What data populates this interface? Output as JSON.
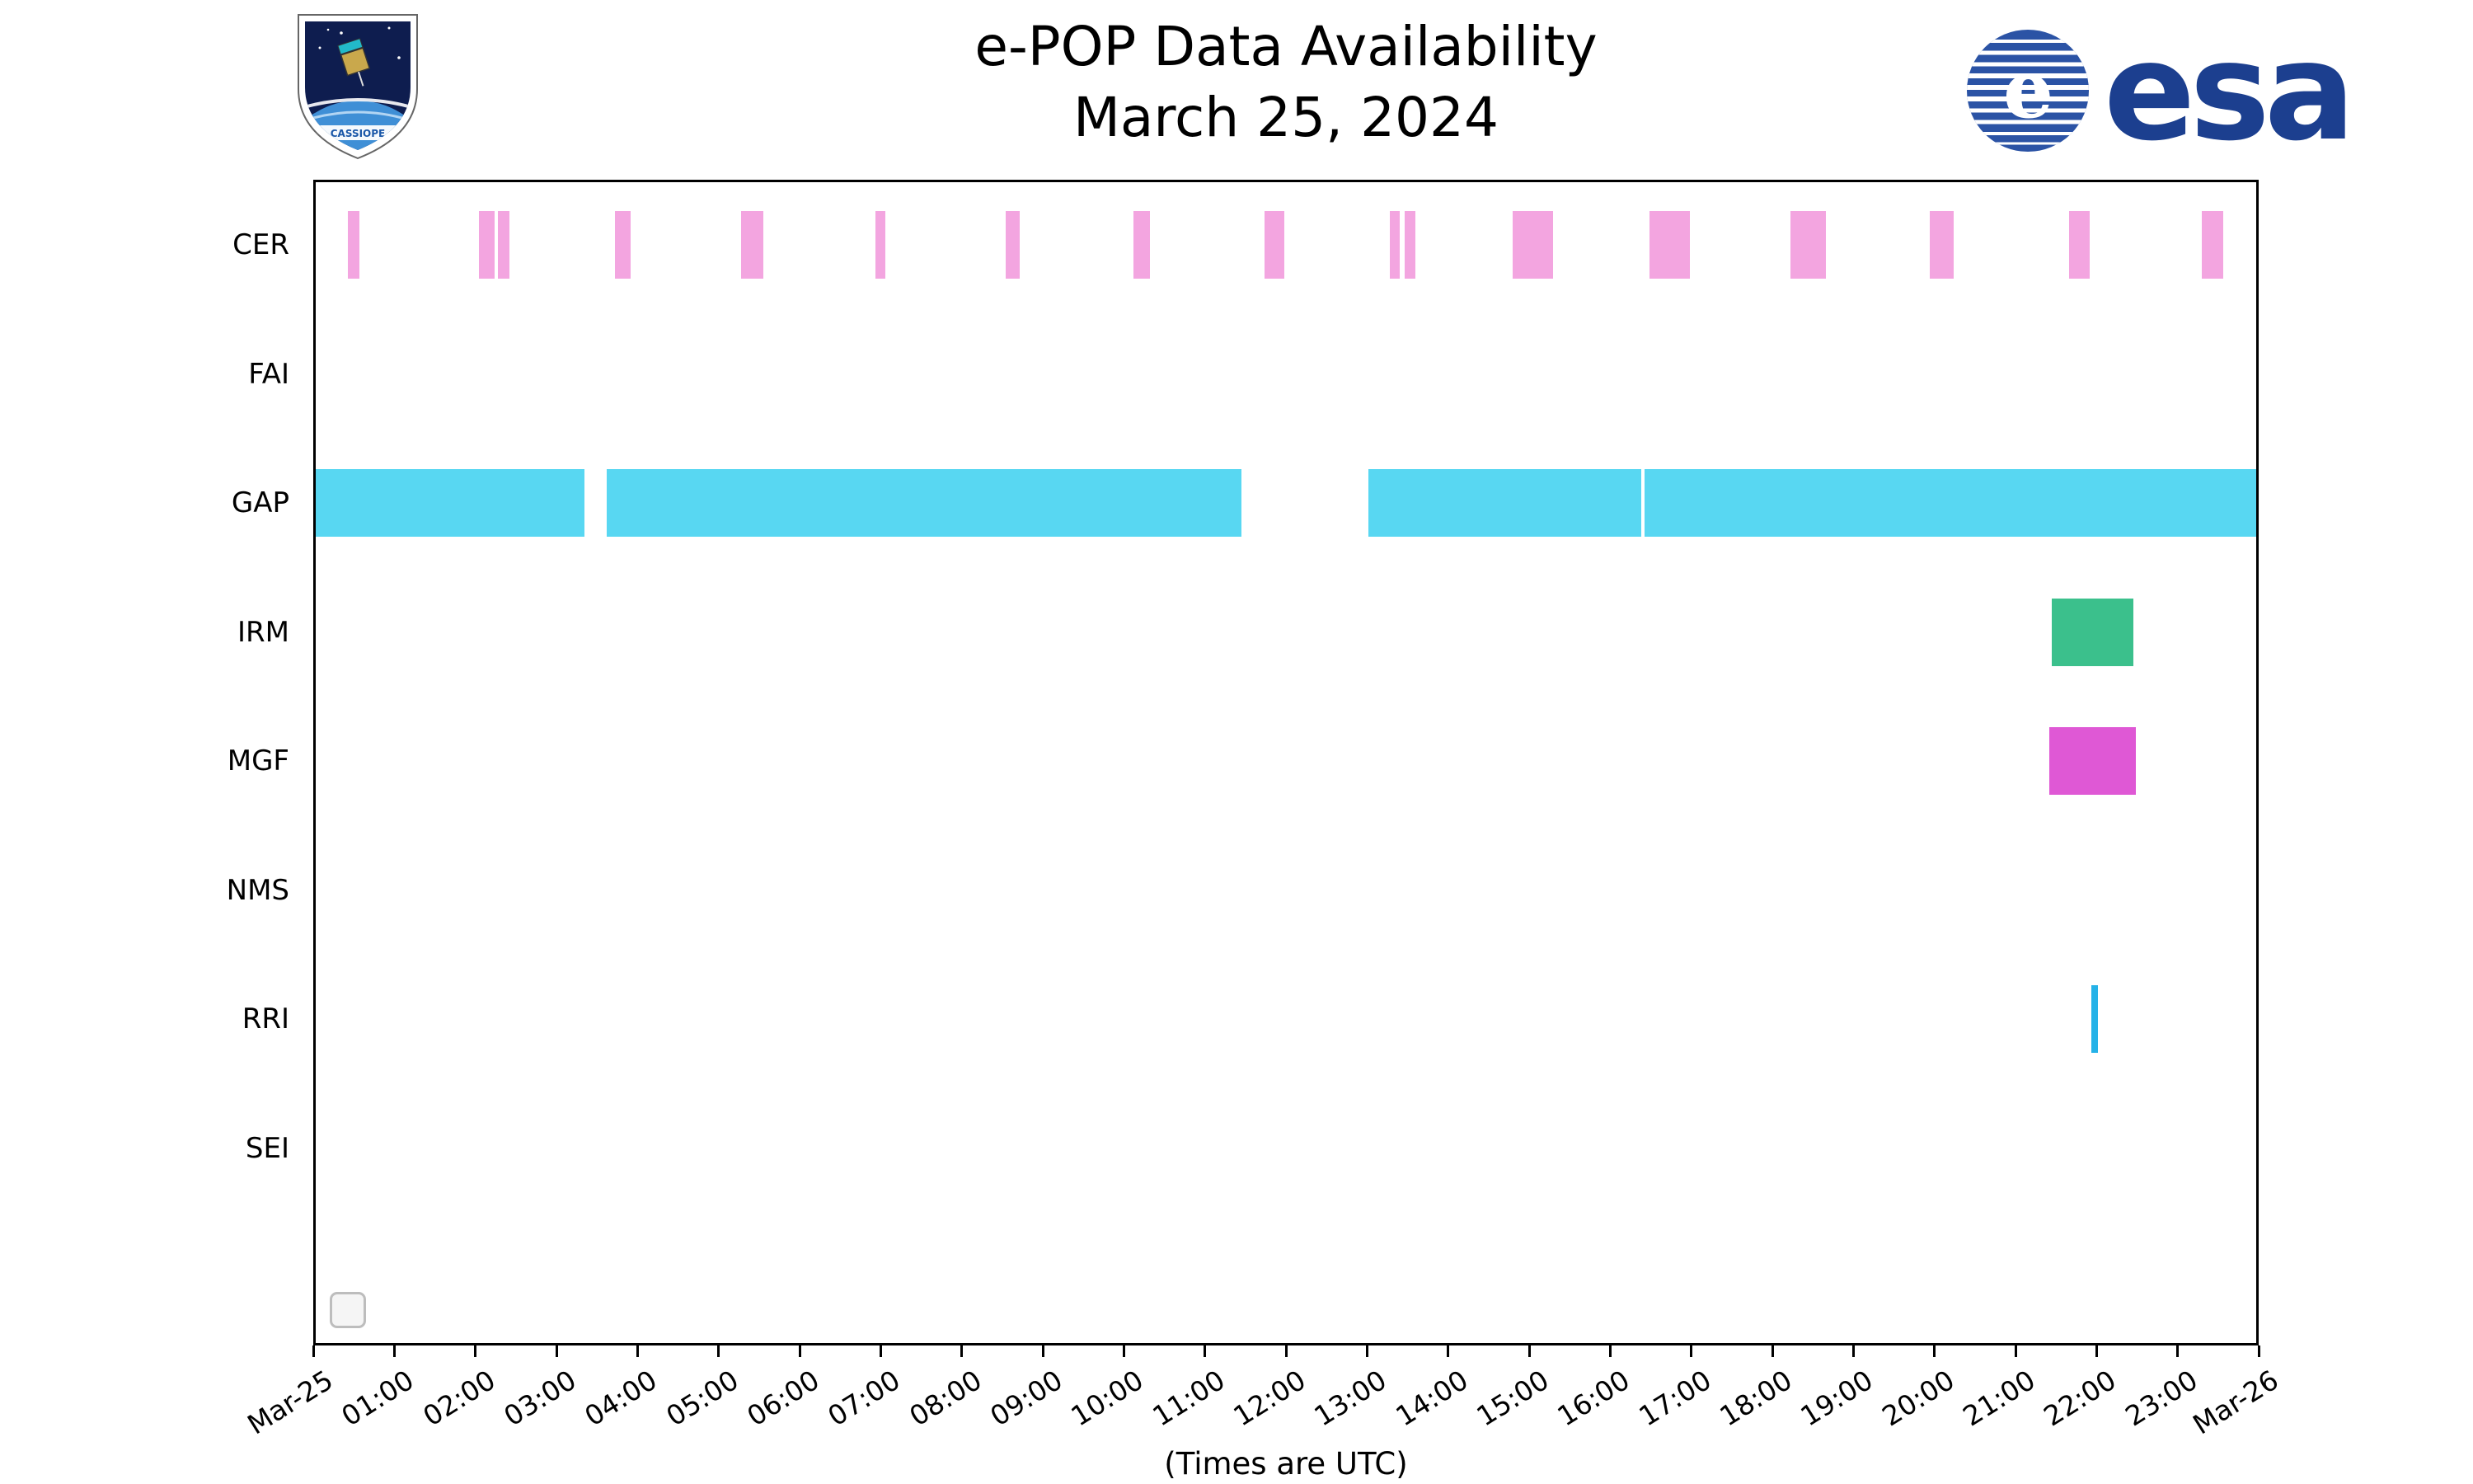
{
  "header": {
    "title_line1": "e-POP Data Availability",
    "title_line2": "March 25, 2024",
    "esa_wordmark": "esa",
    "cassiope_label": "CASSIOPE"
  },
  "colors": {
    "esa_blue": "#1c3f8f",
    "esa_circle_blue": "#2b53a5",
    "axis": "#000000"
  },
  "chart_data": {
    "type": "timeline",
    "title": "e-POP Data Availability — March 25, 2024",
    "xlabel": "(Times are UTC)",
    "ylabel": "",
    "x_min_hours": 0,
    "x_max_hours": 24,
    "grid": false,
    "x_tick_labels": [
      "Mar-25",
      "01:00",
      "02:00",
      "03:00",
      "04:00",
      "05:00",
      "06:00",
      "07:00",
      "08:00",
      "09:00",
      "10:00",
      "11:00",
      "12:00",
      "13:00",
      "14:00",
      "15:00",
      "16:00",
      "17:00",
      "18:00",
      "19:00",
      "20:00",
      "21:00",
      "22:00",
      "23:00",
      "Mar-26"
    ],
    "rows": [
      {
        "label": "CER",
        "color": "#F3A5E0",
        "intervals": [
          [
            0.43,
            0.57
          ],
          [
            2.04,
            2.24
          ],
          [
            2.28,
            2.42
          ],
          [
            3.72,
            3.92
          ],
          [
            5.28,
            5.55
          ],
          [
            6.94,
            7.06
          ],
          [
            8.54,
            8.72
          ],
          [
            10.12,
            10.32
          ],
          [
            11.74,
            11.98
          ],
          [
            13.28,
            13.4
          ],
          [
            13.46,
            13.6
          ],
          [
            14.8,
            15.3
          ],
          [
            16.48,
            16.98
          ],
          [
            18.22,
            18.66
          ],
          [
            19.94,
            20.24
          ],
          [
            21.66,
            21.92
          ],
          [
            23.3,
            23.56
          ]
        ]
      },
      {
        "label": "FAI",
        "color": "#F3A5E0",
        "intervals": []
      },
      {
        "label": "GAP",
        "color": "#58D7F2",
        "intervals": [
          [
            0.0,
            3.35
          ],
          [
            3.62,
            11.45
          ],
          [
            13.02,
            16.38
          ],
          [
            16.42,
            24.0
          ]
        ]
      },
      {
        "label": "IRM",
        "color": "#3BC08C",
        "intervals": [
          [
            21.45,
            22.45
          ]
        ]
      },
      {
        "label": "MGF",
        "color": "#DF58D5",
        "intervals": [
          [
            21.42,
            22.48
          ]
        ]
      },
      {
        "label": "NMS",
        "color": "#888888",
        "intervals": []
      },
      {
        "label": "RRI",
        "color": "#25B2E8",
        "intervals": [
          [
            21.94,
            22.02
          ]
        ]
      },
      {
        "label": "SEI",
        "color": "#888888",
        "intervals": []
      }
    ]
  }
}
